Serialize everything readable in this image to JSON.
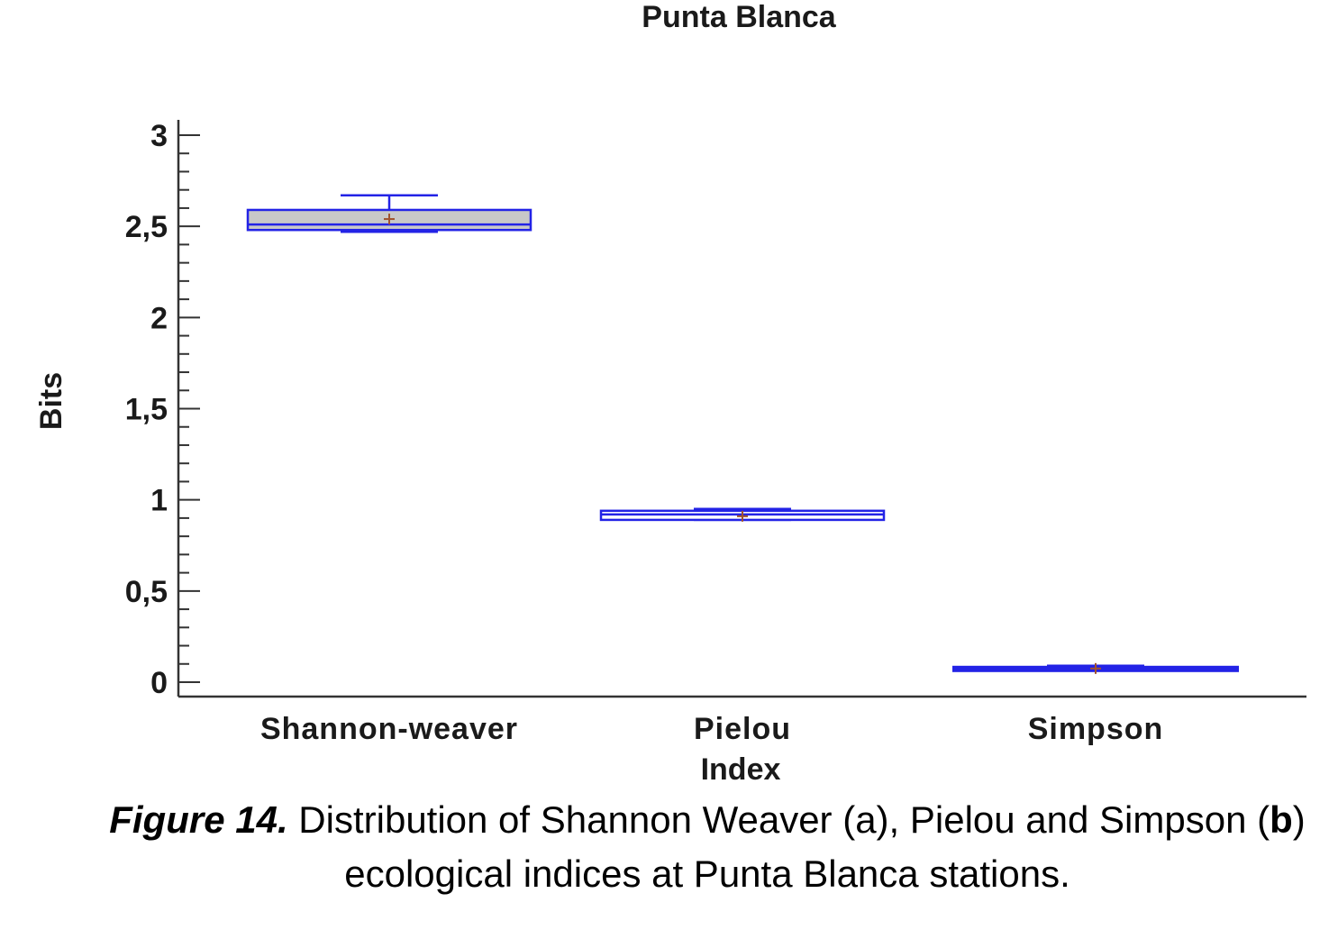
{
  "chart_data": {
    "type": "boxplot",
    "title": "Punta Blanca",
    "xlabel": "Index",
    "ylabel": "Bits",
    "ylim": [
      0,
      3
    ],
    "yticks": [
      {
        "value": 3,
        "label": "3"
      },
      {
        "value": 2.5,
        "label": "2,5"
      },
      {
        "value": 2,
        "label": "2"
      },
      {
        "value": 1.5,
        "label": "1,5"
      },
      {
        "value": 1,
        "label": "1"
      },
      {
        "value": 0.5,
        "label": "0,5"
      },
      {
        "value": 0,
        "label": "0"
      }
    ],
    "categories": [
      "Shannon-weaver",
      "Pielou",
      "Simpson"
    ],
    "boxes": [
      {
        "category": "Shannon-weaver",
        "min": 2.47,
        "q1": 2.48,
        "median": 2.51,
        "q3": 2.59,
        "max": 2.67,
        "mean": 2.54
      },
      {
        "category": "Pielou",
        "min": 0.89,
        "q1": 0.89,
        "median": 0.92,
        "q3": 0.94,
        "max": 0.95,
        "mean": 0.91
      },
      {
        "category": "Simpson",
        "min": 0.07,
        "q1": 0.07,
        "median": 0.075,
        "q3": 0.08,
        "max": 0.09,
        "mean": 0.075
      }
    ],
    "grid": false,
    "box_color": "#2323e6",
    "fill_color": "#c8c8c8",
    "mean_marker_color": "#a0522d"
  },
  "caption": {
    "label": "Figure 14.",
    "text_part1": " Distribution of Shannon Weaver (a), Pielou and Simpson (",
    "bold_letter": "b",
    "text_part2": ") ecological indices at Punta Blanca stations."
  }
}
